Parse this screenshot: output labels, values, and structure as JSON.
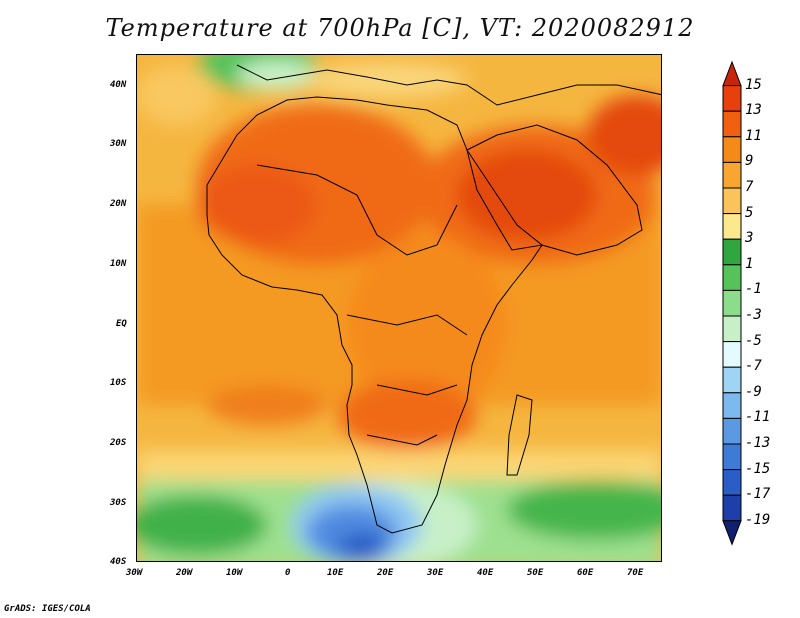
{
  "title": "Temperature at 700hPa [C], VT: 2020082912",
  "footer": "GrADS: IGES/COLA",
  "map": {
    "lon_range": [
      -30,
      75
    ],
    "lat_range": [
      -40,
      45
    ],
    "x_ticks": [
      "30W",
      "20W",
      "10W",
      "0",
      "10E",
      "20E",
      "30E",
      "40E",
      "50E",
      "60E",
      "70E"
    ],
    "y_ticks": [
      "40N",
      "30N",
      "20N",
      "10N",
      "EQ",
      "10S",
      "20S",
      "30S",
      "40S"
    ]
  },
  "colorbar": {
    "labels": [
      "15",
      "13",
      "11",
      "9",
      "7",
      "5",
      "3",
      "1",
      "-1",
      "-3",
      "-5",
      "-7",
      "-9",
      "-11",
      "-13",
      "-15",
      "-17",
      "-19"
    ],
    "colors": [
      "#c8240a",
      "#e8400c",
      "#f0600e",
      "#f58a18",
      "#f8a531",
      "#fbc45a",
      "#fde98d",
      "#2fa640",
      "#55c25a",
      "#8bdc8b",
      "#c8f0c8",
      "#e3fbff",
      "#9fd4f5",
      "#7cb9ee",
      "#5b9ae3",
      "#3e7bd6",
      "#2a5ec7",
      "#1e3fa9",
      "#10206f"
    ]
  }
}
